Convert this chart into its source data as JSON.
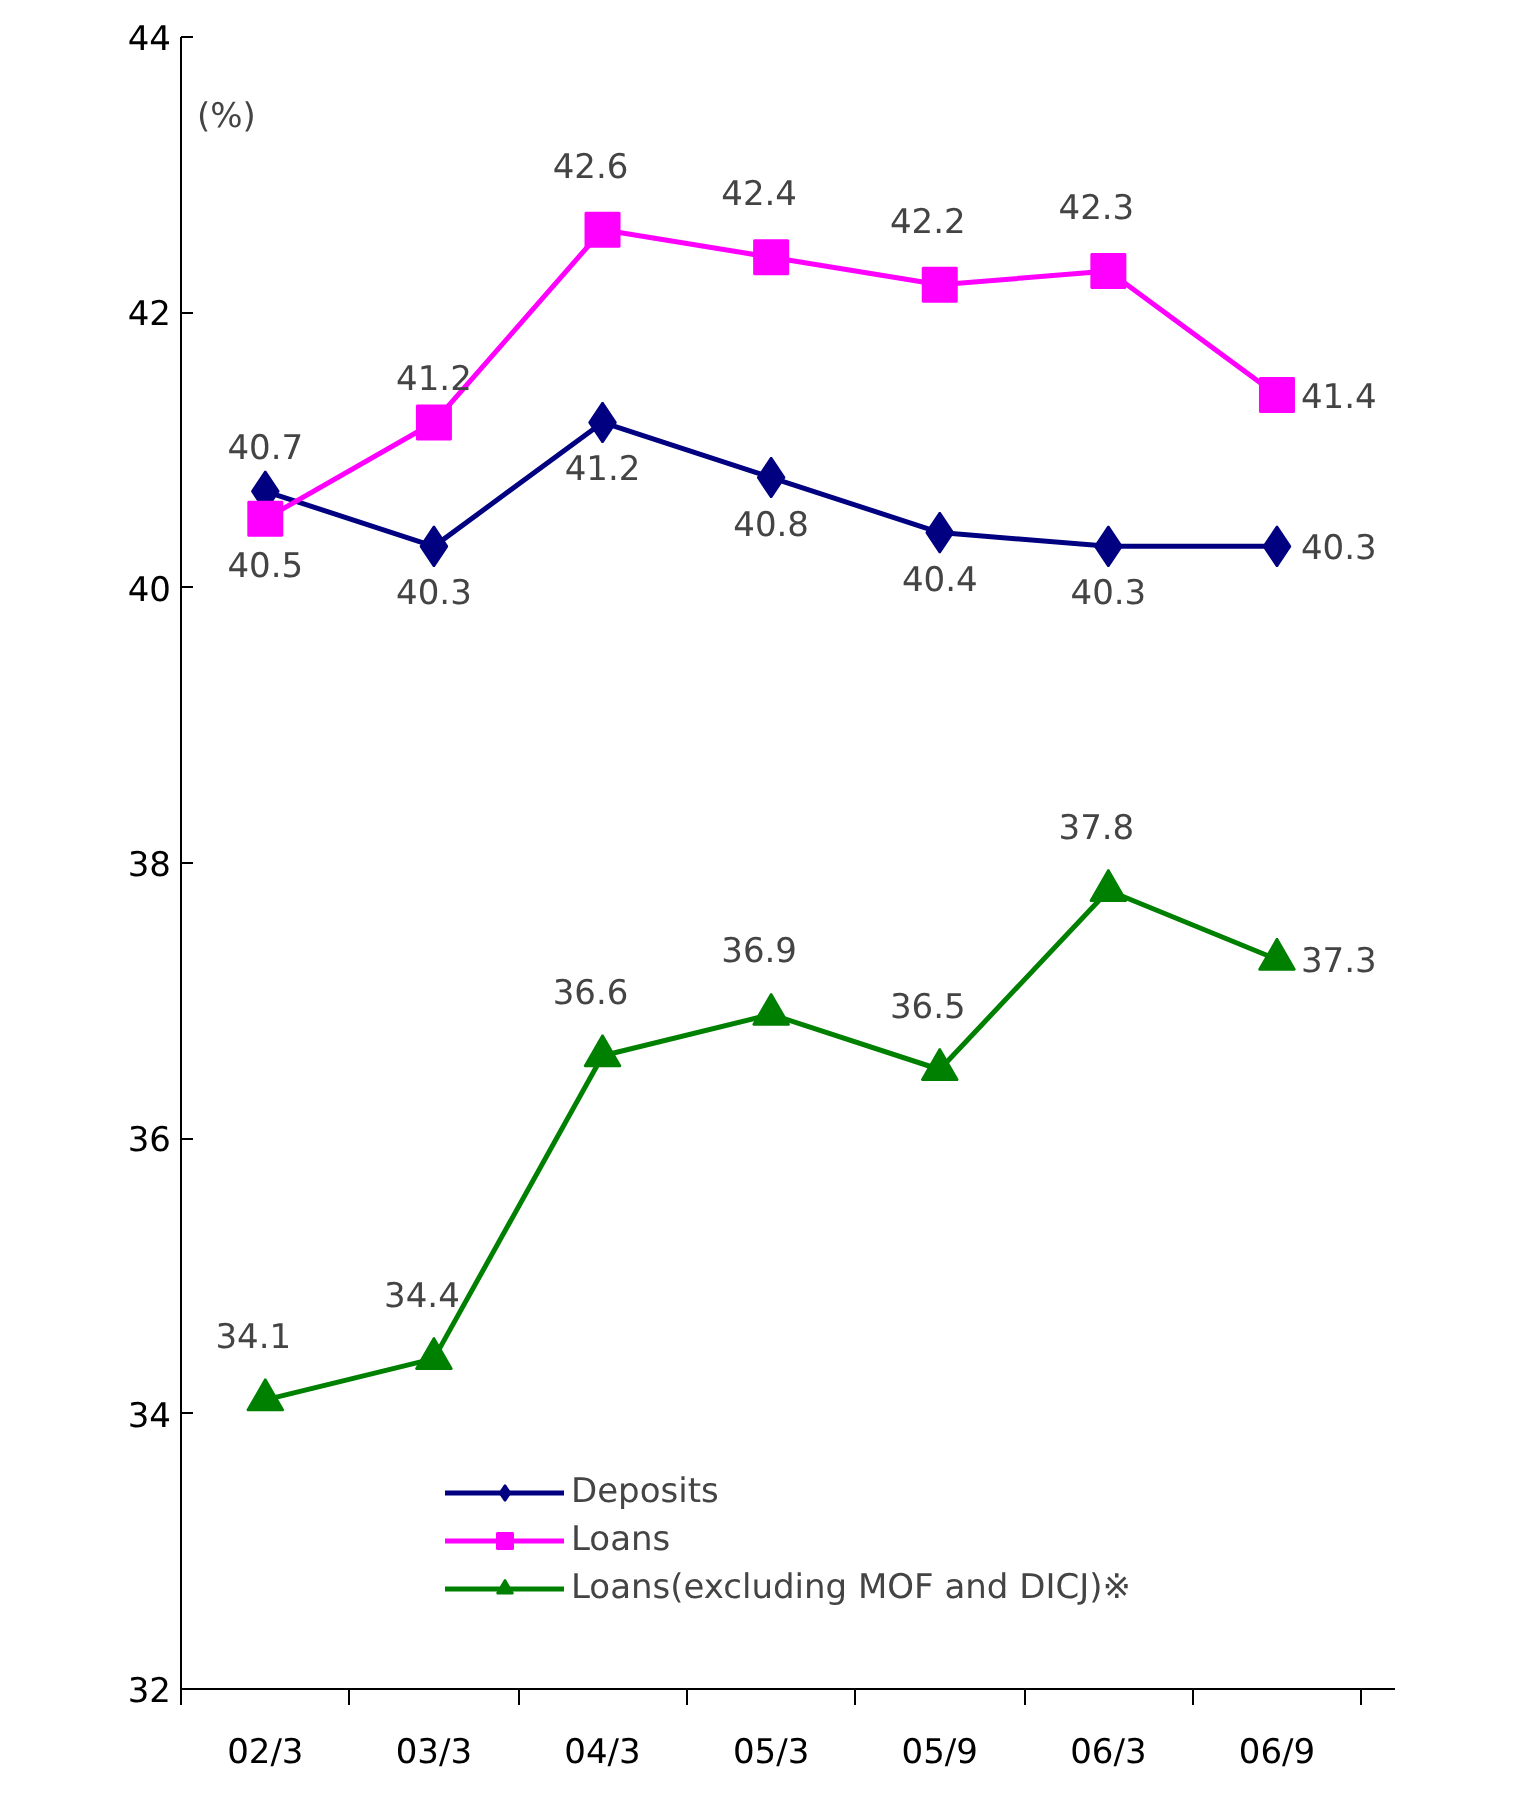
{
  "chart_data": {
    "type": "line",
    "ylabel": "(%)",
    "categories": [
      "02/3",
      "03/3",
      "04/3",
      "05/3",
      "05/9",
      "06/3",
      "06/9"
    ],
    "series": [
      {
        "name": "Deposits",
        "color": "#000080",
        "marker": "diamond",
        "values": [
          40.7,
          40.3,
          41.2,
          40.8,
          40.4,
          40.3,
          40.3
        ]
      },
      {
        "name": "Loans",
        "color": "#ff00ff",
        "marker": "square",
        "values": [
          40.5,
          41.2,
          42.6,
          42.4,
          42.2,
          42.3,
          41.4
        ]
      },
      {
        "name": "Loans(excluding MOF and DICJ)※",
        "color": "#008000",
        "marker": "triangle",
        "values": [
          34.1,
          34.4,
          36.6,
          36.9,
          36.5,
          37.8,
          37.3
        ]
      }
    ],
    "ylim": [
      32,
      44
    ],
    "yticks": [
      32,
      34,
      36,
      38,
      40,
      42,
      44
    ],
    "grid": false,
    "legend": "bottom",
    "data_labels": true,
    "line_style": "solid"
  }
}
